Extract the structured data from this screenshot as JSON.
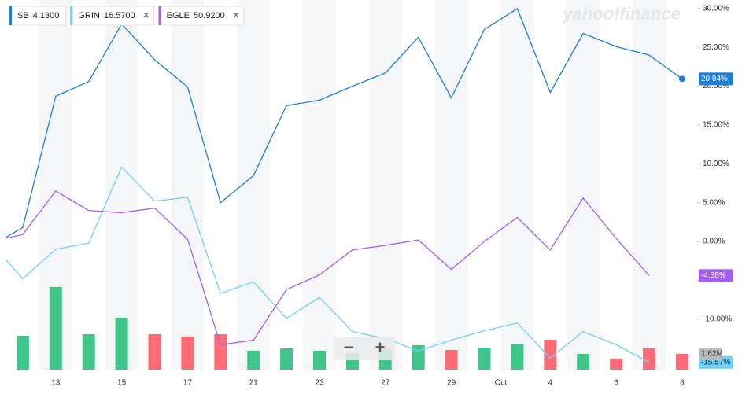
{
  "chart_data": {
    "type": "line",
    "watermark": "yahoo!finance",
    "categories": [
      null,
      null,
      "13",
      null,
      "15",
      null,
      "17",
      null,
      "21",
      null,
      "23",
      null,
      "27",
      null,
      "29",
      null,
      "Oct",
      "4",
      null,
      "6",
      null,
      "8"
    ],
    "ylim": [
      -16.5,
      31.1
    ],
    "yticks": [
      {
        "value": 30,
        "label": "30.00%"
      },
      {
        "value": 25,
        "label": "25.00%"
      },
      {
        "value": 20,
        "label": "20.00%"
      },
      {
        "value": 15,
        "label": "15.00%"
      },
      {
        "value": 10,
        "label": "10.00%"
      },
      {
        "value": 5,
        "label": "5.00%"
      },
      {
        "value": 0,
        "label": "0.00%"
      },
      {
        "value": -5,
        "label": "-5.00%"
      },
      {
        "value": -10,
        "label": "-10.00%"
      }
    ],
    "grid": false,
    "series": [
      {
        "name": "SB",
        "price": "4.1300",
        "removable": false,
        "color": "#1a7fdc",
        "values": [
          0.5,
          1.8,
          18.7,
          20.6,
          28.0,
          23.4,
          19.9,
          5.0,
          8.5,
          17.5,
          18.2,
          20.0,
          21.7,
          26.3,
          18.5,
          27.3,
          30.0,
          19.2,
          26.8,
          25.1,
          24.0,
          20.94
        ],
        "value_labels": [
          null,
          null,
          null,
          null,
          null,
          null,
          null,
          null,
          null,
          null,
          null,
          null,
          null,
          null,
          null,
          null,
          null,
          null,
          null,
          null,
          null,
          "20.94%"
        ]
      },
      {
        "name": "GRIN",
        "price": "16.5700",
        "removable": true,
        "color": "#6fcff5",
        "values": [
          -2.3,
          -4.8,
          -1.0,
          -0.2,
          9.6,
          5.2,
          5.7,
          -6.7,
          -5.2,
          -9.9,
          -7.2,
          -11.6,
          -12.5,
          -14.1,
          -12.7,
          -11.5,
          -10.5,
          -15.0,
          -11.6,
          -13.3,
          -15.57,
          null
        ],
        "value_labels": [
          null,
          null,
          null,
          null,
          null,
          null,
          null,
          null,
          null,
          null,
          null,
          null,
          null,
          null,
          null,
          null,
          null,
          null,
          null,
          null,
          "-15.57%",
          null
        ]
      },
      {
        "name": "EGLE",
        "price": "50.9200",
        "removable": true,
        "color": "#a55cf0",
        "values": [
          0.4,
          0.9,
          6.5,
          4.0,
          3.7,
          4.3,
          0.3,
          -13.3,
          -12.7,
          -6.2,
          -4.3,
          -1.1,
          -0.5,
          0.2,
          -3.6,
          0.0,
          3.1,
          -1.1,
          5.6,
          0.4,
          -4.38,
          null
        ],
        "value_labels": [
          null,
          null,
          null,
          null,
          null,
          null,
          null,
          null,
          null,
          null,
          null,
          null,
          null,
          null,
          null,
          null,
          null,
          null,
          null,
          null,
          "-4.38%",
          null
        ]
      }
    ],
    "volume": {
      "vlim": [
        0,
        38000000
      ],
      "values": [
        null,
        3480000,
        8500000,
        3640000,
        5340000,
        3640000,
        3400000,
        3640000,
        1940000,
        2180000,
        1940000,
        1700000,
        2180000,
        2510000,
        2020000,
        2260000,
        2670000,
        3070000,
        1620000,
        1130000,
        2180000,
        1620000
      ],
      "colors": [
        null,
        "#3fc58a",
        "#3fc58a",
        "#3fc58a",
        "#3fc58a",
        "#fd6b76",
        "#fd6b76",
        "#fd6b76",
        "#3fc58a",
        "#3fc58a",
        "#3fc58a",
        "#3fc58a",
        "#3fc58a",
        "#3fc58a",
        "#fd6b76",
        "#3fc58a",
        "#3fc58a",
        "#fd6b76",
        "#3fc58a",
        "#fd6b76",
        "#fd6b76",
        "#fd6b76"
      ],
      "value_labels": [
        null,
        null,
        null,
        null,
        null,
        null,
        null,
        null,
        null,
        null,
        null,
        null,
        null,
        null,
        null,
        null,
        null,
        null,
        null,
        null,
        null,
        "1.62M"
      ]
    },
    "zoom_out": "−",
    "zoom_in": "+",
    "remove_icon": "×"
  }
}
